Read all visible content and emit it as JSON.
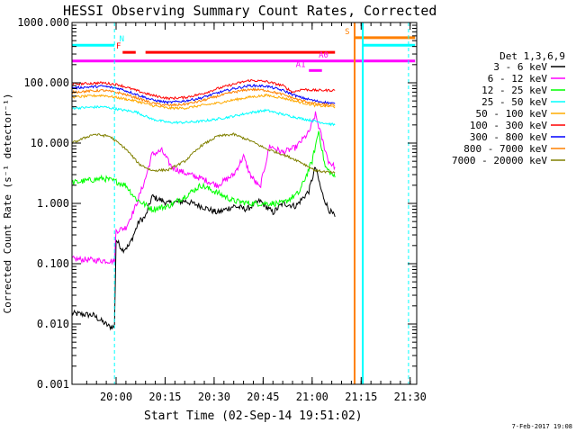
{
  "chart_data": {
    "type": "line",
    "title": "HESSI Observing Summary Count Rates, Corrected",
    "xlabel": "Start Time (02-Sep-14 19:51:02)",
    "ylabel": "Corrected Count Rate (s⁻¹ detector⁻¹)",
    "yscale": "log",
    "ylim": [
      0.001,
      1000
    ],
    "xlim_min": [
      -4.5,
      101
    ],
    "x_unit": "minutes after 19:51:02",
    "x_ticks": [
      {
        "m": 9,
        "label": "20:00"
      },
      {
        "m": 24,
        "label": "20:15"
      },
      {
        "m": 39,
        "label": "20:30"
      },
      {
        "m": 54,
        "label": "20:45"
      },
      {
        "m": 69,
        "label": "21:00"
      },
      {
        "m": 84,
        "label": "21:15"
      },
      {
        "m": 99,
        "label": "21:30"
      }
    ],
    "y_ticks": [
      {
        "v": 0.001,
        "label": "0.001"
      },
      {
        "v": 0.01,
        "label": "0.010"
      },
      {
        "v": 0.1,
        "label": "0.100"
      },
      {
        "v": 1,
        "label": "1.000"
      },
      {
        "v": 10,
        "label": "10.000"
      },
      {
        "v": 100,
        "label": "100.000"
      },
      {
        "v": 1000,
        "label": "1000.000"
      }
    ],
    "legend_title": "Det 1,3,6,9",
    "legend_position": "right",
    "series": [
      {
        "name": "3 - 6 keV",
        "color": "#000000",
        "points": [
          [
            -4.5,
            0.015
          ],
          [
            2,
            0.014
          ],
          [
            7,
            0.009
          ],
          [
            8.5,
            0.009
          ],
          [
            9,
            0.25
          ],
          [
            11,
            0.17
          ],
          [
            13,
            0.2
          ],
          [
            16,
            0.5
          ],
          [
            18,
            0.6
          ],
          [
            20,
            1.3
          ],
          [
            25,
            1.0
          ],
          [
            30,
            1.1
          ],
          [
            35,
            0.9
          ],
          [
            40,
            0.7
          ],
          [
            45,
            0.9
          ],
          [
            49,
            0.8
          ],
          [
            53,
            1.1
          ],
          [
            57,
            0.7
          ],
          [
            60,
            1.0
          ],
          [
            64,
            0.9
          ],
          [
            68,
            1.6
          ],
          [
            70,
            4.0
          ],
          [
            72,
            1.5
          ],
          [
            74,
            0.8
          ],
          [
            76,
            0.6
          ]
        ]
      },
      {
        "name": "6 - 12 keV",
        "color": "#ff00ff",
        "points": [
          [
            -4.5,
            0.12
          ],
          [
            8.5,
            0.11
          ],
          [
            9,
            0.35
          ],
          [
            12,
            0.4
          ],
          [
            15,
            0.9
          ],
          [
            18,
            2.6
          ],
          [
            20,
            6.5
          ],
          [
            23,
            7.5
          ],
          [
            26,
            4.0
          ],
          [
            30,
            3.2
          ],
          [
            35,
            2.6
          ],
          [
            40,
            2.0
          ],
          [
            45,
            3.0
          ],
          [
            48,
            6.0
          ],
          [
            50,
            3.0
          ],
          [
            53,
            1.8
          ],
          [
            56,
            9.0
          ],
          [
            60,
            7.0
          ],
          [
            64,
            8.5
          ],
          [
            68,
            15.0
          ],
          [
            70,
            30.0
          ],
          [
            72,
            12.0
          ],
          [
            74,
            5.0
          ],
          [
            76,
            4.0
          ]
        ]
      },
      {
        "name": "12 - 25 keV",
        "color": "#00ff00",
        "points": [
          [
            -4.5,
            2.2
          ],
          [
            5,
            2.6
          ],
          [
            9,
            2.3
          ],
          [
            12,
            2.0
          ],
          [
            15,
            1.2
          ],
          [
            20,
            0.8
          ],
          [
            25,
            0.9
          ],
          [
            30,
            1.3
          ],
          [
            35,
            2.0
          ],
          [
            40,
            1.5
          ],
          [
            45,
            1.1
          ],
          [
            50,
            1.0
          ],
          [
            55,
            1.0
          ],
          [
            60,
            1.0
          ],
          [
            65,
            1.5
          ],
          [
            69,
            5.0
          ],
          [
            71,
            16.0
          ],
          [
            73,
            4.0
          ],
          [
            76,
            2.7
          ]
        ]
      },
      {
        "name": "25 - 50 keV",
        "color": "#00ffff",
        "points": [
          [
            -4.5,
            38.0
          ],
          [
            5,
            40.0
          ],
          [
            10,
            36.0
          ],
          [
            15,
            33.0
          ],
          [
            20,
            25.0
          ],
          [
            25,
            22.0
          ],
          [
            30,
            22.0
          ],
          [
            35,
            23.0
          ],
          [
            40,
            25.0
          ],
          [
            45,
            28.0
          ],
          [
            50,
            32.0
          ],
          [
            55,
            35.0
          ],
          [
            60,
            30.0
          ],
          [
            65,
            26.0
          ],
          [
            70,
            23.0
          ],
          [
            76,
            20.0
          ]
        ]
      },
      {
        "name": "50 - 100 keV",
        "color": "#ffaa00",
        "points": [
          [
            -4.5,
            58.0
          ],
          [
            5,
            62.0
          ],
          [
            10,
            56.0
          ],
          [
            15,
            50.0
          ],
          [
            20,
            42.0
          ],
          [
            25,
            38.0
          ],
          [
            30,
            38.0
          ],
          [
            35,
            42.0
          ],
          [
            40,
            46.0
          ],
          [
            45,
            52.0
          ],
          [
            50,
            58.0
          ],
          [
            55,
            62.0
          ],
          [
            60,
            56.0
          ],
          [
            65,
            48.0
          ],
          [
            70,
            42.0
          ],
          [
            76,
            40.0
          ]
        ]
      },
      {
        "name": "100 - 300 keV",
        "color": "#ff0000",
        "points": [
          [
            -4.5,
            95.0
          ],
          [
            5,
            100.0
          ],
          [
            10,
            92.0
          ],
          [
            15,
            75.0
          ],
          [
            20,
            62.0
          ],
          [
            25,
            55.0
          ],
          [
            30,
            57.0
          ],
          [
            35,
            65.0
          ],
          [
            40,
            80.0
          ],
          [
            45,
            95.0
          ],
          [
            50,
            110.0
          ],
          [
            55,
            105.0
          ],
          [
            60,
            90.0
          ],
          [
            63,
            70.0
          ],
          [
            66,
            78.0
          ],
          [
            70,
            75.0
          ],
          [
            76,
            75.0
          ]
        ]
      },
      {
        "name": "300 - 800 keV",
        "color": "#0000ff",
        "points": [
          [
            -4.5,
            82.0
          ],
          [
            5,
            88.0
          ],
          [
            10,
            80.0
          ],
          [
            15,
            65.0
          ],
          [
            20,
            52.0
          ],
          [
            25,
            47.0
          ],
          [
            30,
            50.0
          ],
          [
            35,
            56.0
          ],
          [
            40,
            68.0
          ],
          [
            45,
            80.0
          ],
          [
            50,
            90.0
          ],
          [
            55,
            88.0
          ],
          [
            60,
            75.0
          ],
          [
            65,
            58.0
          ],
          [
            70,
            50.0
          ],
          [
            76,
            45.0
          ]
        ]
      },
      {
        "name": "800 - 7000 keV",
        "color": "#ff8000",
        "points": [
          [
            -4.5,
            70.0
          ],
          [
            5,
            75.0
          ],
          [
            10,
            68.0
          ],
          [
            15,
            57.0
          ],
          [
            20,
            46.0
          ],
          [
            25,
            42.0
          ],
          [
            30,
            44.0
          ],
          [
            35,
            50.0
          ],
          [
            40,
            60.0
          ],
          [
            45,
            70.0
          ],
          [
            50,
            78.0
          ],
          [
            55,
            75.0
          ],
          [
            60,
            64.0
          ],
          [
            65,
            52.0
          ],
          [
            70,
            45.0
          ],
          [
            76,
            42.0
          ]
        ]
      },
      {
        "name": "7000 - 20000 keV",
        "color": "#808000",
        "points": [
          [
            -4.5,
            10.0
          ],
          [
            2,
            14.0
          ],
          [
            7,
            13.0
          ],
          [
            12,
            8.0
          ],
          [
            16,
            4.5
          ],
          [
            20,
            3.5
          ],
          [
            25,
            3.6
          ],
          [
            30,
            5.0
          ],
          [
            35,
            9.0
          ],
          [
            40,
            13.0
          ],
          [
            45,
            14.0
          ],
          [
            50,
            11.0
          ],
          [
            55,
            8.0
          ],
          [
            60,
            6.5
          ],
          [
            65,
            5.0
          ],
          [
            70,
            3.5
          ],
          [
            76,
            3.2
          ]
        ]
      }
    ],
    "flag_bars": [
      {
        "label": "N",
        "color": "#00ffff",
        "y": 420,
        "segments": [
          [
            -4.5,
            8.5
          ]
        ],
        "label_m": 10
      },
      {
        "label": "",
        "color": "#00ffff",
        "y": 420,
        "segments": [
          [
            84.5,
            100.5
          ]
        ],
        "label_m": null
      },
      {
        "label": "F",
        "color": "#ff0000",
        "y": 320,
        "segments": [
          [
            11,
            15
          ],
          [
            18,
            76
          ]
        ],
        "label_m": 9
      },
      {
        "label": "",
        "color": "#ff00ff",
        "y": 230,
        "segments": [
          [
            -4.5,
            100.5
          ]
        ],
        "label_m": null
      },
      {
        "label": "A0",
        "color": "#ff00ff",
        "y": 230,
        "segments": [],
        "label_m": 71
      },
      {
        "label": "A1",
        "color": "#ff00ff",
        "y": 160,
        "segments": [
          [
            68,
            72
          ]
        ],
        "label_m": 64
      },
      {
        "label": "S",
        "color": "#ff8000",
        "y": 560,
        "segments": [
          [
            82,
            100.5
          ]
        ],
        "label_m": 79
      }
    ],
    "vlines": [
      {
        "m": 8.5,
        "color": "#00ffff",
        "style": "dashed"
      },
      {
        "m": 98.5,
        "color": "#00ffff",
        "style": "dashed"
      },
      {
        "m": 82,
        "color": "#ff8000",
        "style": "solid"
      },
      {
        "m": 84.5,
        "color": "#00ffff",
        "style": "solid"
      }
    ]
  },
  "footer": {
    "date_stamp": "7-Feb-2017 19:08"
  }
}
